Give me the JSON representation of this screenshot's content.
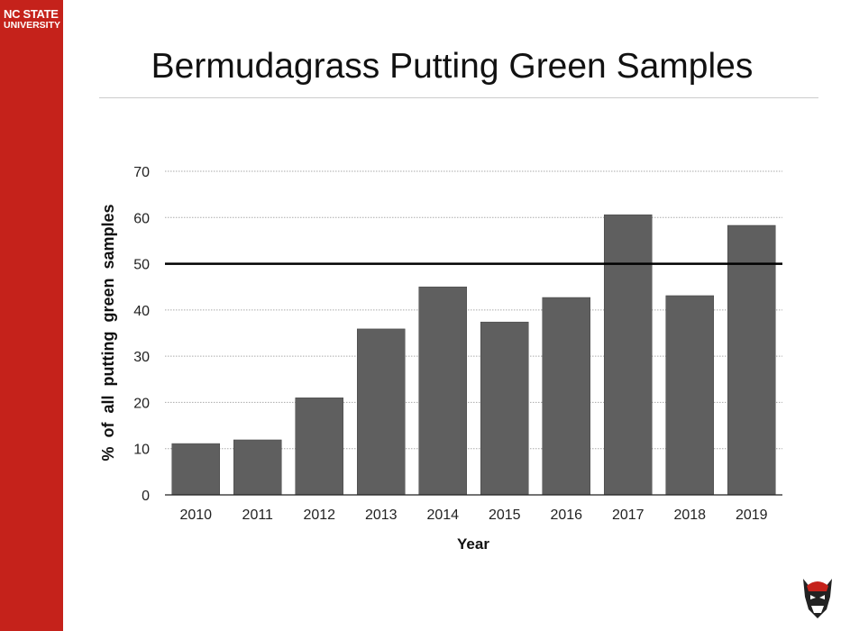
{
  "branding": {
    "line1": "NC STATE",
    "line2": "UNIVERSITY",
    "color": "#c5221b"
  },
  "chart_data": {
    "type": "bar",
    "title": "Bermudagrass Putting Green Samples",
    "xlabel": "Year",
    "ylabel": "% of all putting green samples",
    "categories": [
      "2010",
      "2011",
      "2012",
      "2013",
      "2014",
      "2015",
      "2016",
      "2017",
      "2018",
      "2019"
    ],
    "values": [
      11.1,
      11.9,
      21,
      35.9,
      45,
      37.4,
      42.7,
      60.6,
      43.1,
      58.3
    ],
    "ylim": [
      0,
      70
    ],
    "yticks": [
      0,
      10,
      20,
      30,
      40,
      50,
      60,
      70
    ],
    "reference_line": 50,
    "grid": "dotted horizontal",
    "bar_color": "#5f5f5f"
  }
}
